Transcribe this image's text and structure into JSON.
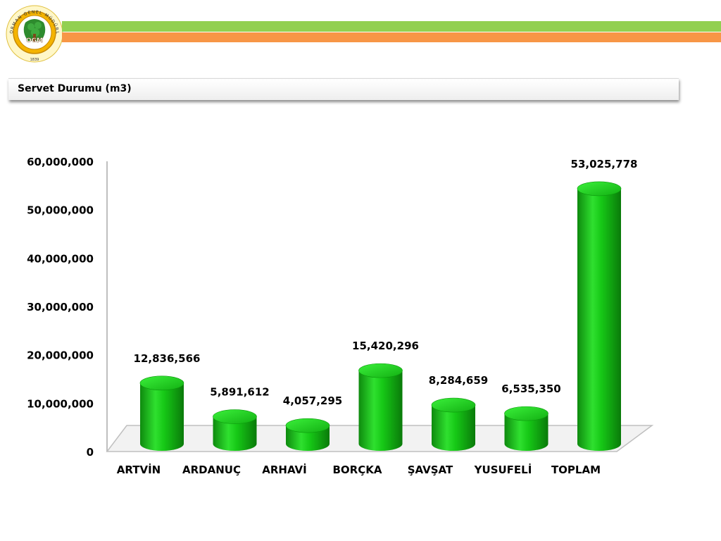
{
  "header": {
    "title": "Servet Durumu (m3)",
    "logo_text": "ORMAN GENEL MÜDÜRLÜĞÜ",
    "logo_abbr": "OGM",
    "logo_year": "1839"
  },
  "colors": {
    "stripe_green": "#92d050",
    "stripe_orange": "#f79646",
    "bar": "#1fc01f"
  },
  "chart_data": {
    "type": "bar",
    "categories": [
      "ARTVİN",
      "ARDANUÇ",
      "ARHAVİ",
      "BORÇKA",
      "ŞAVŞAT",
      "YUSUFELİ",
      "TOPLAM"
    ],
    "values": [
      12836566,
      5891612,
      4057295,
      15420296,
      8284659,
      6535350,
      53025778
    ],
    "value_labels": [
      "12,836,566",
      "5,891,612",
      "4,057,295",
      "15,420,296",
      "8,284,659",
      "6,535,350",
      "53,025,778"
    ],
    "ylim": [
      0,
      60000000
    ],
    "yticks": [
      0,
      10000000,
      20000000,
      30000000,
      40000000,
      50000000,
      60000000
    ],
    "ytick_labels": [
      "0",
      "10,000,000",
      "20,000,000",
      "30,000,000",
      "40,000,000",
      "50,000,000",
      "60,000,000"
    ],
    "grid": false,
    "style": "3d-cylinder"
  }
}
